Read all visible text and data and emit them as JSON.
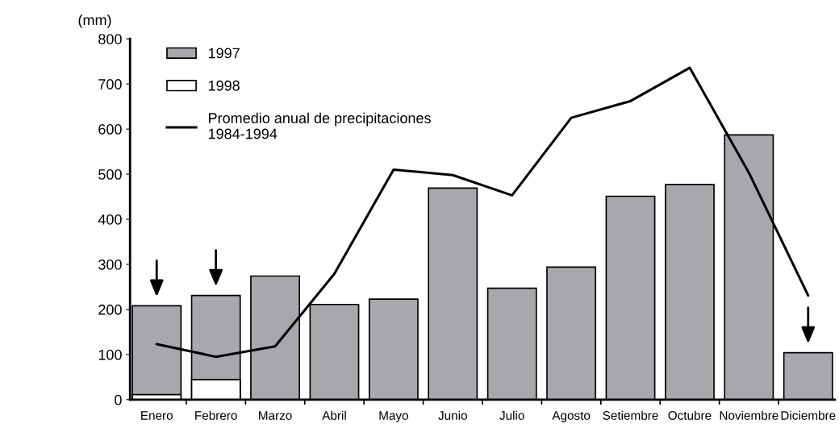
{
  "chart_data": {
    "type": "bar",
    "ylabel": "(mm)",
    "categories": [
      "Enero",
      "Febrero",
      "Marzo",
      "Abril",
      "Mayo",
      "Junio",
      "Julio",
      "Agosto",
      "Setiembre",
      "Octubre",
      "Noviembre",
      "Diciembre"
    ],
    "series": [
      {
        "name": "1997",
        "color": "#a7a8ac",
        "values": [
          208,
          231,
          274,
          211,
          223,
          469,
          247,
          294,
          451,
          477,
          587,
          104
        ]
      },
      {
        "name": "1998",
        "color": "#ffffff",
        "values": [
          11,
          44,
          null,
          null,
          null,
          null,
          null,
          null,
          null,
          null,
          null,
          null
        ]
      },
      {
        "name": "Promedio anual de precipitaciones\n1984-1994",
        "type": "line",
        "color": "#000000",
        "values": [
          123,
          95,
          118,
          279,
          510,
          498,
          453,
          625,
          662,
          736,
          503,
          231
        ]
      }
    ],
    "ylim": [
      0,
      800
    ],
    "yticks": [
      0,
      100,
      200,
      300,
      400,
      500,
      600,
      700,
      800
    ],
    "grid": false,
    "legend": "top left",
    "line_style": "solid",
    "marker": "none"
  }
}
